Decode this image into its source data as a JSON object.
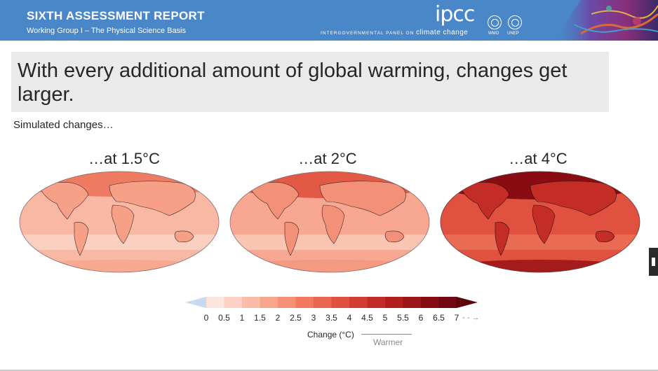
{
  "header": {
    "title": "SIXTH ASSESSMENT REPORT",
    "subtitle": "Working Group I – The Physical Science Basis",
    "ipcc_logo": "ipcc",
    "ipcc_tagline": "INTERGOVERNMENTAL PANEL ON",
    "ipcc_tagline_emph": "climate change",
    "partner_logos": [
      {
        "icon": "wmo-emblem-icon",
        "label": "WMO"
      },
      {
        "icon": "unep-emblem-icon",
        "label": "UNEP"
      }
    ],
    "color": "#4a87c8"
  },
  "slide": {
    "headline": "With every additional amount of global warming, changes get larger.",
    "intro": "Simulated changes…"
  },
  "maps": [
    {
      "title": "…at 1.5°C",
      "warming_level_c": 1.5
    },
    {
      "title": "…at 2°C",
      "warming_level_c": 2
    },
    {
      "title": "…at 4°C",
      "warming_level_c": 4
    }
  ],
  "colorbar": {
    "title": "Change (°C)",
    "direction_label": "Warmer",
    "ticks": [
      "0",
      "0.5",
      "1",
      "1.5",
      "2",
      "2.5",
      "3",
      "3.5",
      "4",
      "4.5",
      "5",
      "5.5",
      "6",
      "6.5",
      "7"
    ],
    "colors": [
      "#fde5dd",
      "#fcd1c3",
      "#fbbba8",
      "#f9a58d",
      "#f68f76",
      "#f17a61",
      "#ea654f",
      "#df503f",
      "#d23c31",
      "#c22b25",
      "#b01e1d",
      "#9b1417",
      "#860d13",
      "#700810"
    ],
    "below_color": "#c9daf0",
    "above_color": "#5c0409"
  },
  "ui": {
    "side_tab_icon": "panel-handle-icon"
  }
}
